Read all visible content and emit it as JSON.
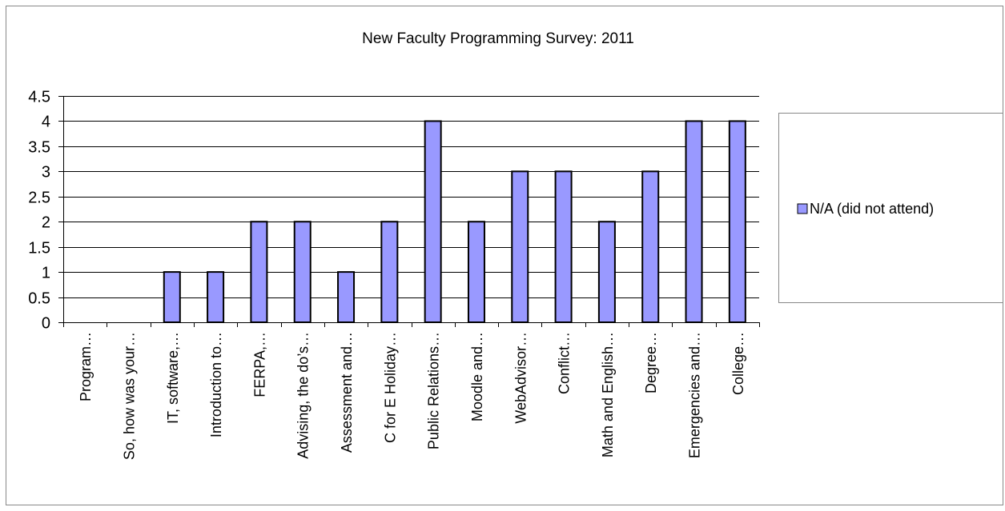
{
  "chart_data": {
    "type": "bar",
    "title": "New Faculty Programming Survey: 2011",
    "xlabel": "",
    "ylabel": "",
    "ylim": [
      0,
      4.5
    ],
    "yticks": [
      "0",
      "0.5",
      "1",
      "1.5",
      "2",
      "2.5",
      "3",
      "3.5",
      "4",
      "4.5"
    ],
    "grid": true,
    "legend_position": "right",
    "categories": [
      "Program…",
      "So, how was your…",
      "IT, software,…",
      "Introduction to…",
      "FERPA,…",
      "Advising, the do’s…",
      "Assessment and…",
      "C for E Holiday…",
      "Public Relations…",
      "Moodle and…",
      "WebAdvisor…",
      "Conflict…",
      "Math and English…",
      "Degree…",
      "Emergencies and…",
      "College…"
    ],
    "series": [
      {
        "name": "N/A (did not attend)",
        "color": "#9999ff",
        "values": [
          0,
          0,
          1,
          1,
          2,
          2,
          1,
          2,
          4,
          2,
          3,
          3,
          2,
          3,
          4,
          4
        ]
      }
    ]
  }
}
